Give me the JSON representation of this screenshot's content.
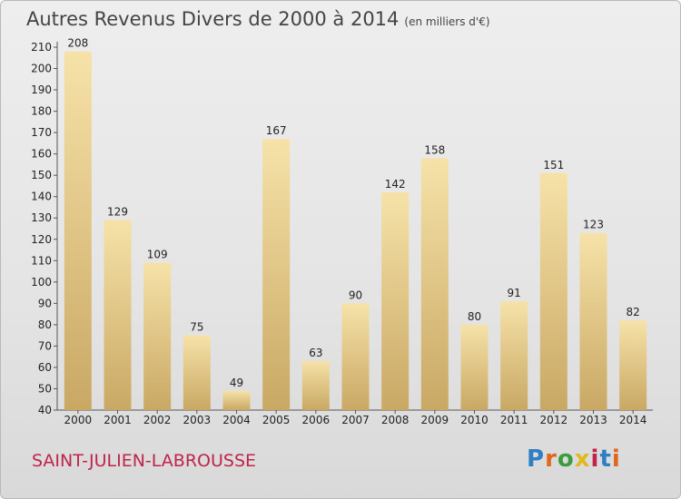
{
  "chart_data": {
    "type": "bar",
    "title": "Autres Revenus Divers de 2000 à 2014",
    "subtitle": "(en milliers d'€)",
    "categories": [
      "2000",
      "2001",
      "2002",
      "2003",
      "2004",
      "2005",
      "2006",
      "2007",
      "2008",
      "2009",
      "2010",
      "2011",
      "2012",
      "2013",
      "2014"
    ],
    "values": [
      208,
      129,
      109,
      75,
      49,
      167,
      63,
      90,
      142,
      158,
      80,
      91,
      151,
      123,
      82
    ],
    "ylim": [
      40,
      210
    ],
    "yticks": [
      40,
      50,
      60,
      70,
      80,
      90,
      100,
      110,
      120,
      130,
      140,
      150,
      160,
      170,
      180,
      190,
      200,
      210
    ],
    "grid": false,
    "bar_color_light": "#f6e2a8",
    "bar_color_dark": "#c9a864"
  },
  "location": "SAINT-JULIEN-LABROUSSE",
  "logo": {
    "text": "Proxiti",
    "colors": [
      "#2f7fc4",
      "#e0671e",
      "#3a9e3a",
      "#e2b91c",
      "#c0244a",
      "#2f7fc4",
      "#e0671e"
    ]
  }
}
